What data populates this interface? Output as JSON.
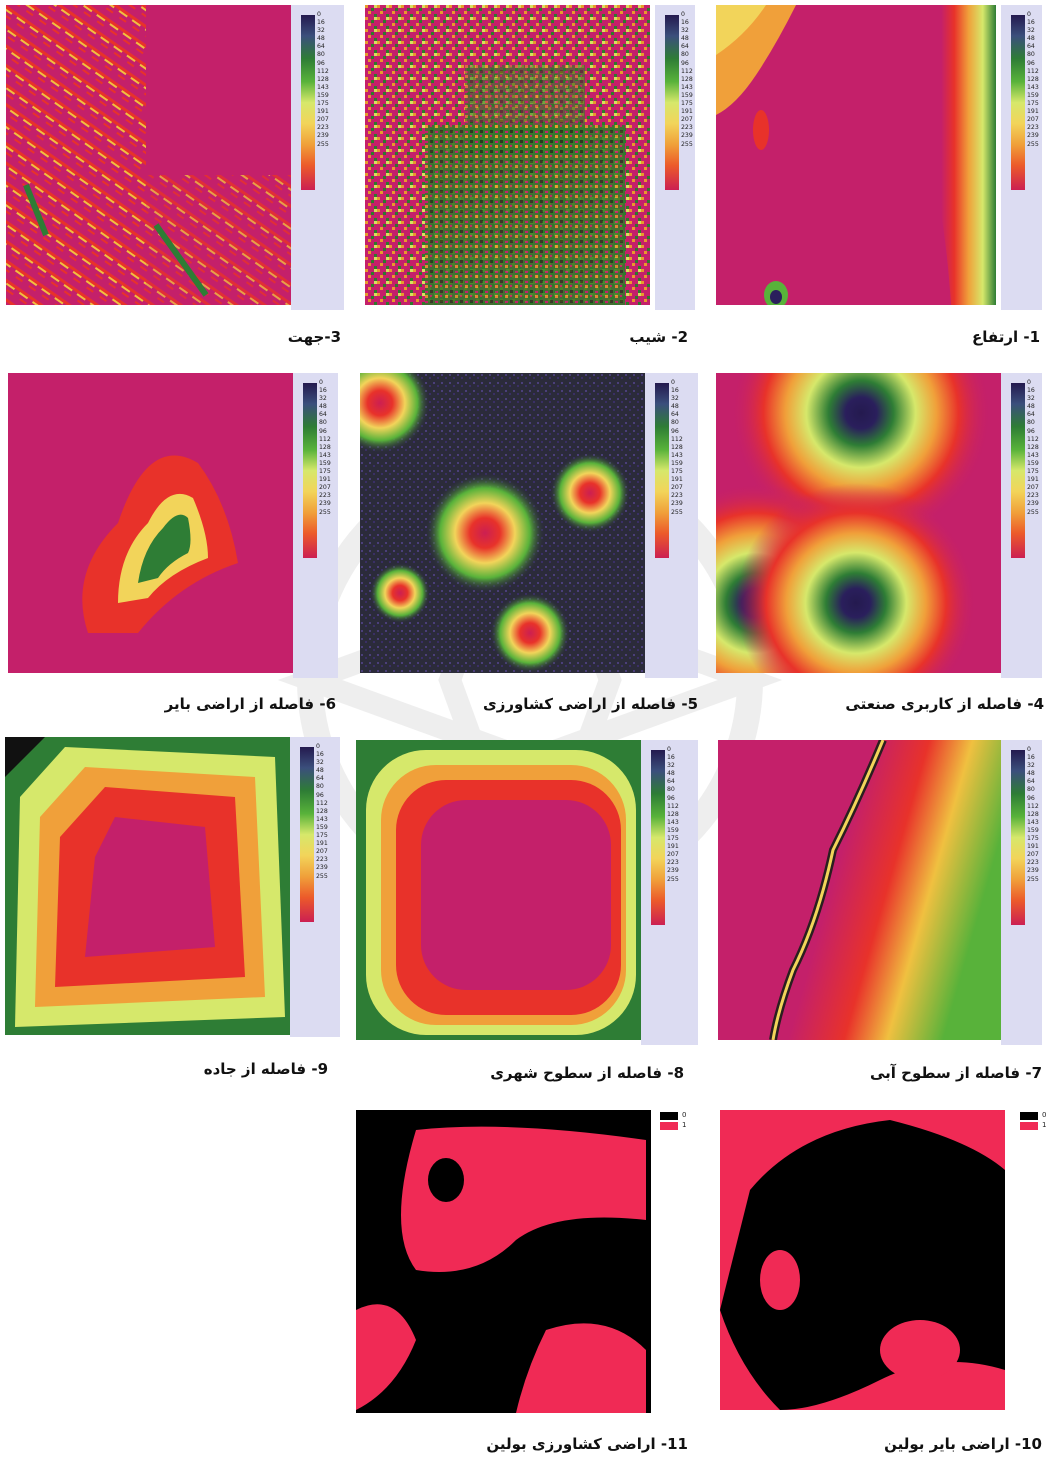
{
  "legend_ticks": [
    "0",
    "16",
    "32",
    "48",
    "64",
    "80",
    "96",
    "112",
    "128",
    "143",
    "159",
    "175",
    "191",
    "207",
    "223",
    "239",
    "255"
  ],
  "bool_ticks": [
    "0",
    "1"
  ],
  "colors": {
    "ramp": [
      "#2a1f5c",
      "#3b4a7a",
      "#2f7a3a",
      "#3fa03a",
      "#7fc23f",
      "#d9e86a",
      "#f3d858",
      "#f0a03a",
      "#ef6a2a",
      "#e8322a",
      "#cc1f52"
    ],
    "magenta": "#c4206a",
    "bool_zero": "#000000",
    "bool_one": "#f02a55"
  },
  "panels": [
    {
      "id": "p1",
      "caption": "1- ارتفاع"
    },
    {
      "id": "p2",
      "caption": "2- شیب"
    },
    {
      "id": "p3",
      "caption": "3-جهت"
    },
    {
      "id": "p4",
      "caption": "4- فاصله از کاربری صنعتی"
    },
    {
      "id": "p5",
      "caption": "5- فاصله از اراضی کشاورزی"
    },
    {
      "id": "p6",
      "caption": "6- فاصله از اراضی بایر"
    },
    {
      "id": "p7",
      "caption": "7- فاصله از سطوح آبی"
    },
    {
      "id": "p8",
      "caption": "8- فاصله از سطوح شهری"
    },
    {
      "id": "p9",
      "caption": "9- فاصله از جاده"
    },
    {
      "id": "p10",
      "caption": "10- اراضی بایر بولین"
    },
    {
      "id": "p11",
      "caption": "11- اراضی کشاورزی بولین"
    }
  ]
}
